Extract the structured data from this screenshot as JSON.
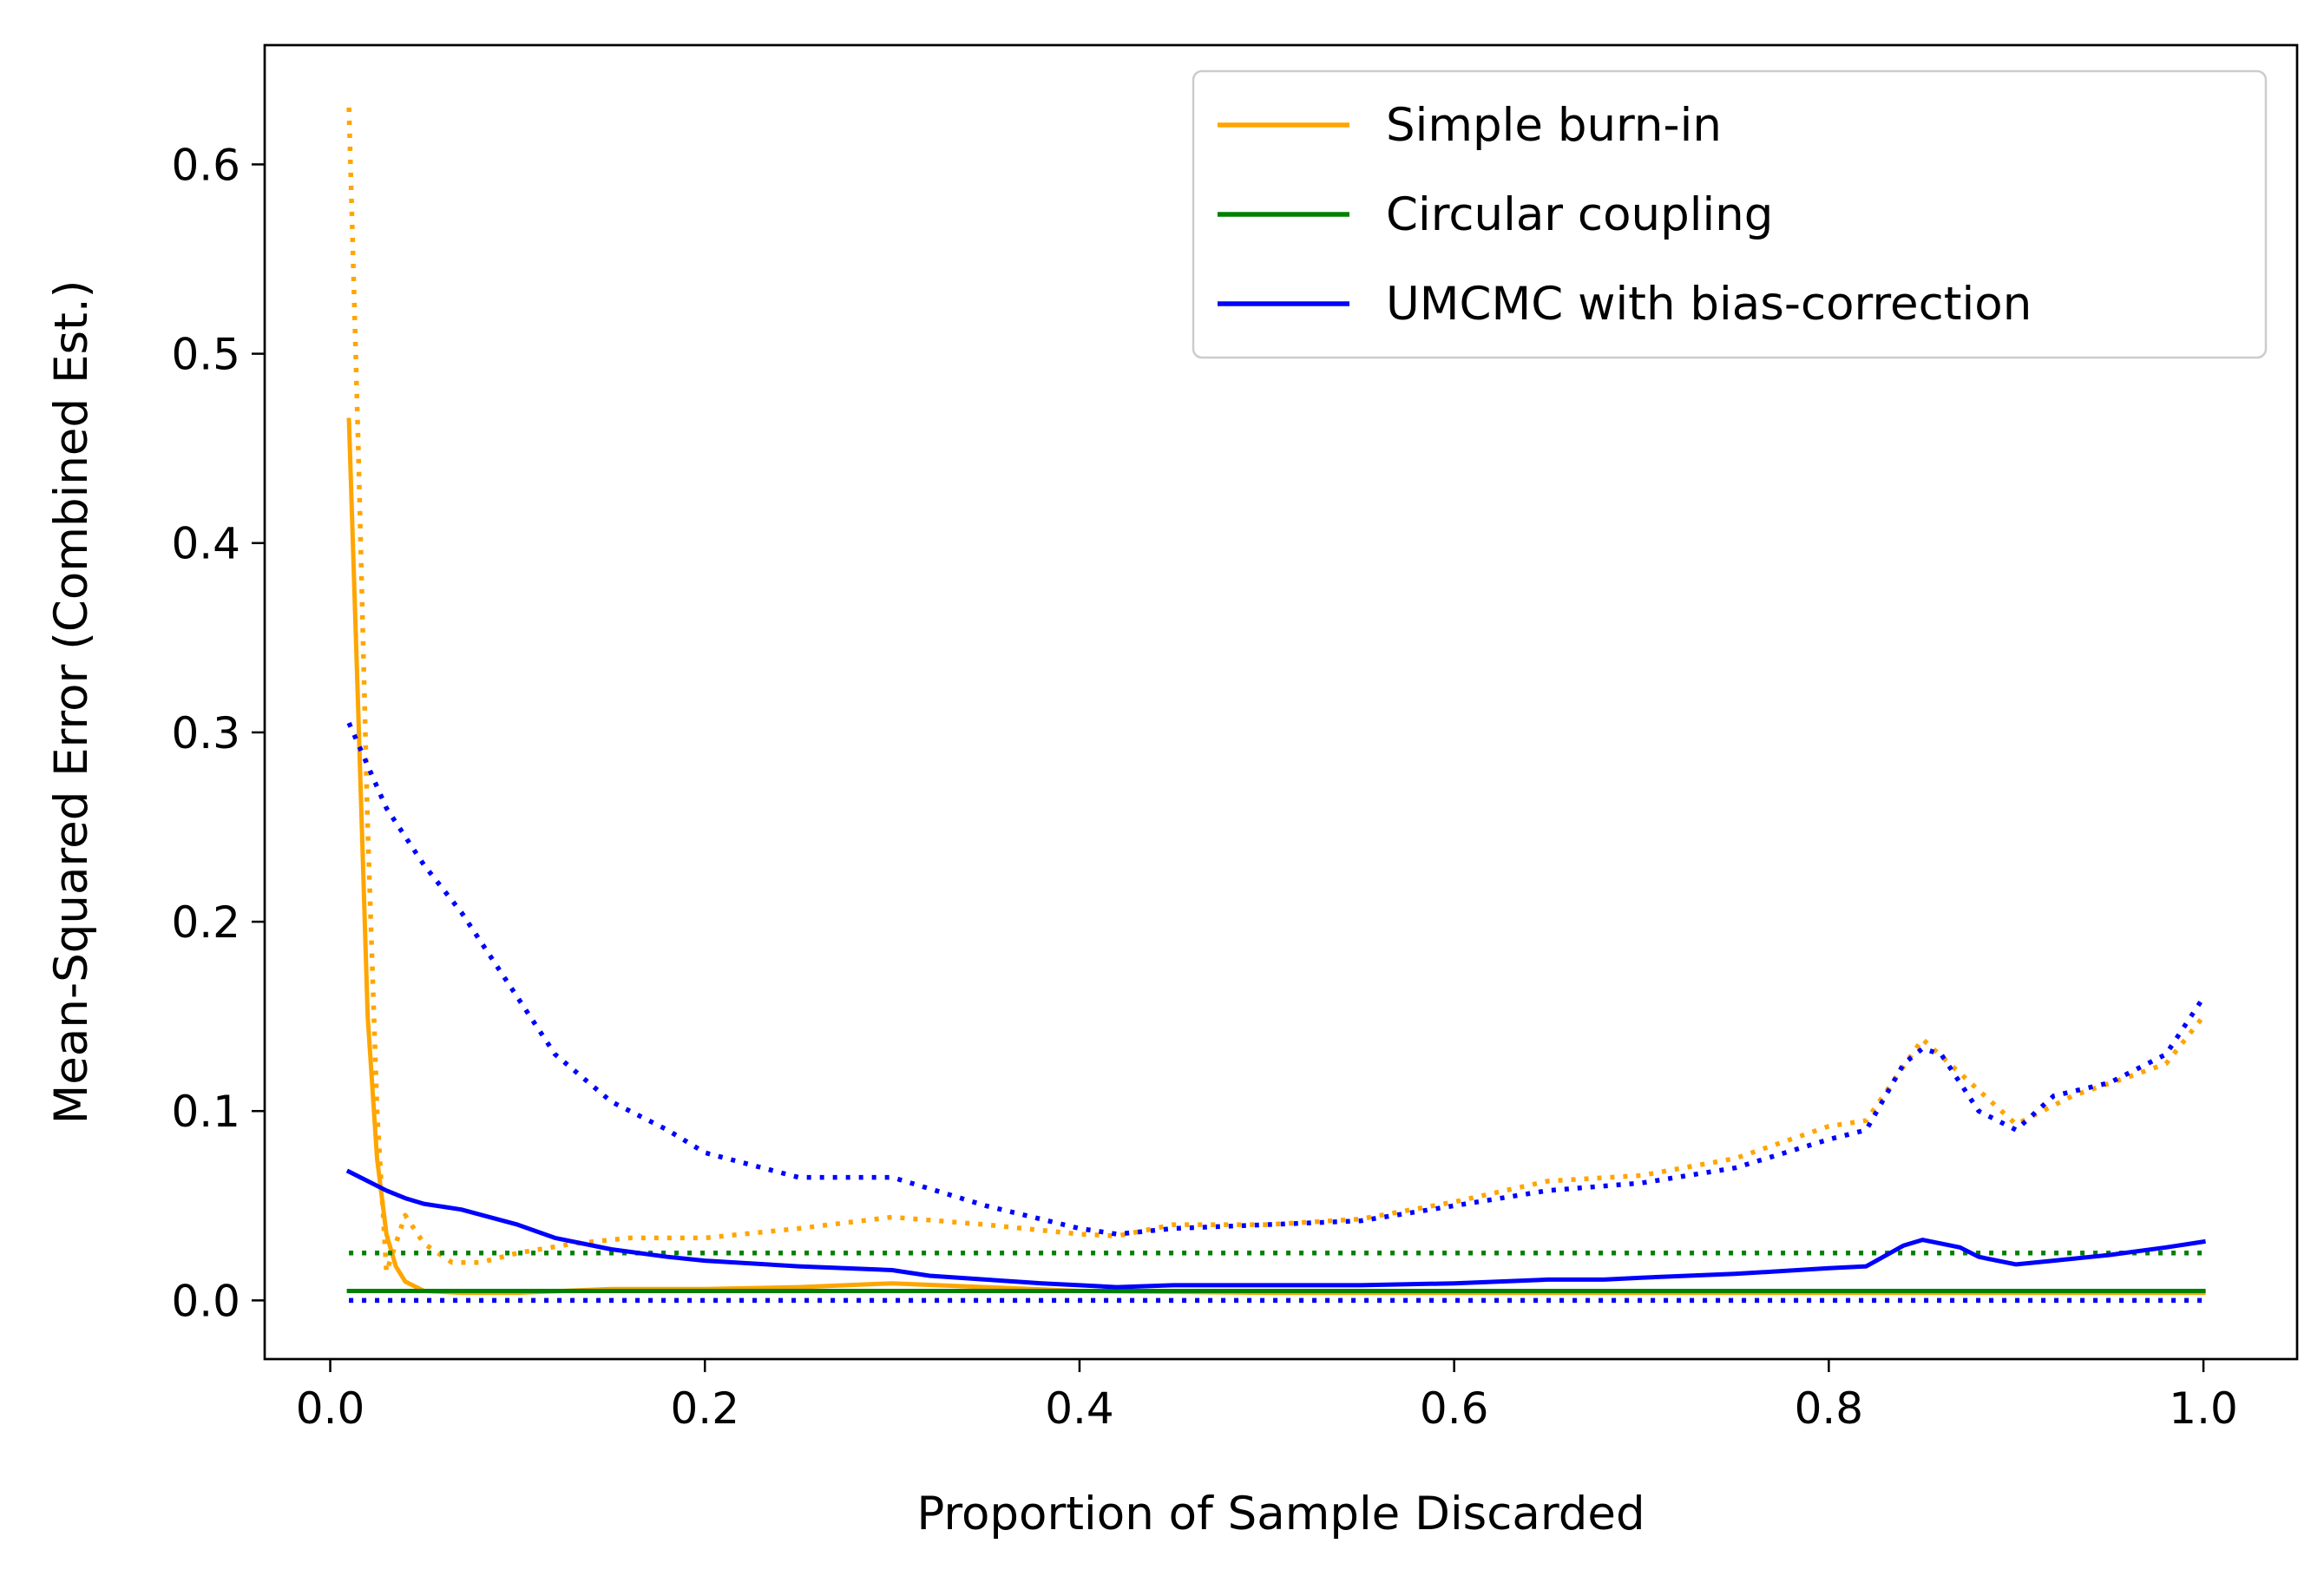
{
  "chart_data": {
    "type": "line",
    "title": "",
    "xlabel": "Proportion of Sample Discarded",
    "ylabel": "Mean-Squared Error (Combined Est.)",
    "xlim": [
      -0.035,
      1.05
    ],
    "ylim": [
      -0.031,
      0.663
    ],
    "x_ticks": [
      0.0,
      0.2,
      0.4,
      0.6,
      0.8,
      1.0
    ],
    "x_tick_labels": [
      "0.0",
      "0.2",
      "0.4",
      "0.6",
      "0.8",
      "1.0"
    ],
    "y_ticks": [
      0.0,
      0.1,
      0.2,
      0.3,
      0.4,
      0.5,
      0.6
    ],
    "y_tick_labels": [
      "0.0",
      "0.1",
      "0.2",
      "0.3",
      "0.4",
      "0.5",
      "0.6"
    ],
    "grid": false,
    "legend_position": "top-right",
    "legend": [
      {
        "label": "Simple burn-in",
        "color": "#ffa500"
      },
      {
        "label": "Circular coupling",
        "color": "#008000"
      },
      {
        "label": "UMCMC with bias-correction",
        "color": "#0000ff"
      }
    ],
    "series": [
      {
        "name": "Simple burn-in",
        "color": "#ffa500",
        "style": "solid",
        "x": [
          0.01,
          0.015,
          0.02,
          0.025,
          0.03,
          0.035,
          0.04,
          0.05,
          0.07,
          0.1,
          0.15,
          0.2,
          0.25,
          0.3,
          0.35,
          0.4,
          0.5,
          0.6,
          0.7,
          0.8,
          0.9,
          1.0
        ],
        "y": [
          0.465,
          0.31,
          0.15,
          0.075,
          0.035,
          0.018,
          0.01,
          0.005,
          0.004,
          0.004,
          0.006,
          0.006,
          0.007,
          0.009,
          0.007,
          0.005,
          0.004,
          0.004,
          0.004,
          0.004,
          0.004,
          0.004
        ]
      },
      {
        "name": "Simple burn-in (bound)",
        "color": "#ffa500",
        "style": "dotted",
        "x": [
          0.01,
          0.015,
          0.02,
          0.025,
          0.03,
          0.04,
          0.05,
          0.065,
          0.08,
          0.1,
          0.13,
          0.16,
          0.2,
          0.25,
          0.3,
          0.35,
          0.4,
          0.42,
          0.45,
          0.5,
          0.55,
          0.6,
          0.65,
          0.7,
          0.75,
          0.8,
          0.82,
          0.85,
          0.87,
          0.9,
          0.93,
          0.96,
          0.98,
          1.0
        ],
        "y": [
          0.63,
          0.45,
          0.25,
          0.1,
          0.015,
          0.045,
          0.03,
          0.02,
          0.02,
          0.025,
          0.03,
          0.033,
          0.033,
          0.038,
          0.044,
          0.04,
          0.035,
          0.034,
          0.04,
          0.04,
          0.043,
          0.052,
          0.063,
          0.066,
          0.075,
          0.092,
          0.095,
          0.138,
          0.12,
          0.093,
          0.108,
          0.118,
          0.125,
          0.15
        ]
      },
      {
        "name": "Simple burn-in (lower)",
        "color": "#ffa500",
        "style": "dotted",
        "x": [
          0.01,
          1.0
        ],
        "y": [
          0.0,
          0.0
        ]
      },
      {
        "name": "Circular coupling",
        "color": "#008000",
        "style": "solid",
        "x": [
          0.01,
          1.0
        ],
        "y": [
          0.005,
          0.005
        ]
      },
      {
        "name": "Circular coupling (bound)",
        "color": "#008000",
        "style": "dotted",
        "x": [
          0.01,
          1.0
        ],
        "y": [
          0.025,
          0.025
        ]
      },
      {
        "name": "UMCMC with bias-correction",
        "color": "#0000ff",
        "style": "solid",
        "x": [
          0.01,
          0.02,
          0.03,
          0.04,
          0.05,
          0.07,
          0.1,
          0.12,
          0.15,
          0.18,
          0.2,
          0.25,
          0.3,
          0.32,
          0.35,
          0.38,
          0.4,
          0.42,
          0.45,
          0.5,
          0.55,
          0.6,
          0.65,
          0.68,
          0.7,
          0.75,
          0.8,
          0.82,
          0.84,
          0.85,
          0.86,
          0.87,
          0.88,
          0.9,
          0.92,
          0.95,
          0.98,
          1.0
        ],
        "y": [
          0.068,
          0.063,
          0.058,
          0.054,
          0.051,
          0.048,
          0.04,
          0.033,
          0.027,
          0.023,
          0.021,
          0.018,
          0.016,
          0.013,
          0.011,
          0.009,
          0.008,
          0.007,
          0.008,
          0.008,
          0.008,
          0.009,
          0.011,
          0.011,
          0.012,
          0.014,
          0.017,
          0.018,
          0.029,
          0.032,
          0.03,
          0.028,
          0.023,
          0.019,
          0.021,
          0.024,
          0.028,
          0.031
        ]
      },
      {
        "name": "UMCMC with bias-correction (bound)",
        "color": "#0000ff",
        "style": "dotted",
        "x": [
          0.01,
          0.03,
          0.05,
          0.07,
          0.1,
          0.12,
          0.15,
          0.18,
          0.2,
          0.25,
          0.3,
          0.35,
          0.4,
          0.42,
          0.45,
          0.5,
          0.55,
          0.6,
          0.65,
          0.7,
          0.75,
          0.8,
          0.82,
          0.84,
          0.85,
          0.86,
          0.88,
          0.9,
          0.92,
          0.95,
          0.98,
          1.0
        ],
        "y": [
          0.305,
          0.26,
          0.23,
          0.205,
          0.16,
          0.13,
          0.105,
          0.09,
          0.078,
          0.065,
          0.065,
          0.05,
          0.038,
          0.035,
          0.038,
          0.04,
          0.042,
          0.05,
          0.058,
          0.062,
          0.07,
          0.085,
          0.09,
          0.125,
          0.133,
          0.13,
          0.1,
          0.09,
          0.108,
          0.115,
          0.13,
          0.16
        ]
      },
      {
        "name": "UMCMC with bias-correction (lower)",
        "color": "#0000ff",
        "style": "dotted",
        "x": [
          0.01,
          1.0
        ],
        "y": [
          0.0,
          0.0
        ]
      }
    ]
  }
}
